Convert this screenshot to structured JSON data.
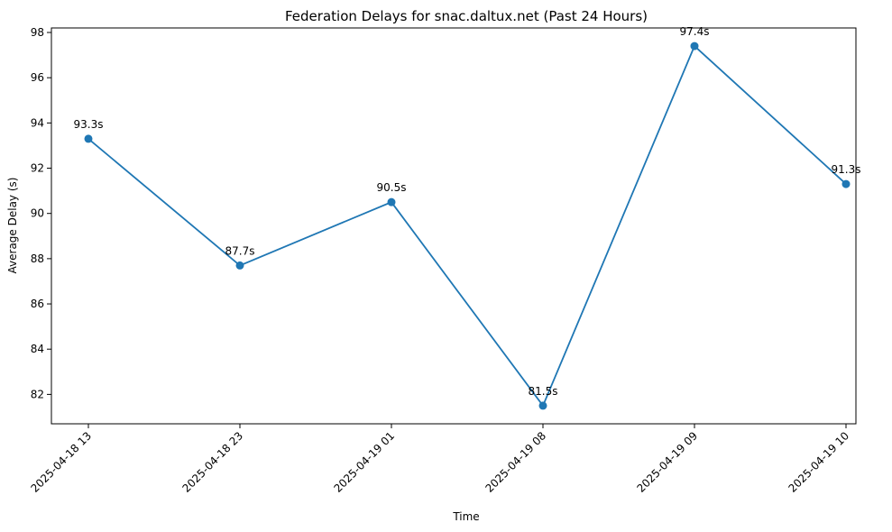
{
  "chart_data": {
    "type": "line",
    "title": "Federation Delays for snac.daltux.net (Past 24 Hours)",
    "xlabel": "Time",
    "ylabel": "Average Delay (s)",
    "categories": [
      "2025-04-18 13",
      "2025-04-18 23",
      "2025-04-19 01",
      "2025-04-19 08",
      "2025-04-19 09",
      "2025-04-19 10"
    ],
    "series": [
      {
        "values": [
          93.3,
          87.7,
          90.5,
          81.5,
          97.4,
          91.3
        ],
        "labels": [
          "93.3s",
          "87.7s",
          "90.5s",
          "81.5s",
          "97.4s",
          "91.3s"
        ],
        "color": "#1f77b4"
      }
    ],
    "ylim": [
      80.7,
      98.2
    ],
    "yticks": [
      82,
      84,
      86,
      88,
      90,
      92,
      94,
      96,
      98
    ],
    "grid": false,
    "legend": "none"
  }
}
